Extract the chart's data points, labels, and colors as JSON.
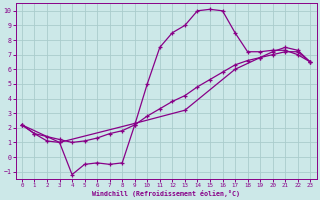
{
  "xlabel": "Windchill (Refroidissement éolien,°C)",
  "bg_color": "#cce8e8",
  "line_color": "#880088",
  "grid_color": "#aacccc",
  "xlim": [
    -0.5,
    23.5
  ],
  "ylim": [
    -1.5,
    10.5
  ],
  "xticks": [
    0,
    1,
    2,
    3,
    4,
    5,
    6,
    7,
    8,
    9,
    10,
    11,
    12,
    13,
    14,
    15,
    16,
    17,
    18,
    19,
    20,
    21,
    22,
    23
  ],
  "yticks": [
    -1,
    0,
    1,
    2,
    3,
    4,
    5,
    6,
    7,
    8,
    9,
    10
  ],
  "curve1_x": [
    0,
    1,
    2,
    3,
    4,
    5,
    6,
    7,
    8,
    9,
    10,
    11,
    12,
    13,
    14,
    15,
    16,
    17,
    18,
    19,
    20,
    21,
    22,
    23
  ],
  "curve1_y": [
    2.2,
    1.6,
    1.1,
    1.0,
    -1.2,
    -0.5,
    -0.4,
    -0.5,
    -0.4,
    2.2,
    5.0,
    7.5,
    8.5,
    9.0,
    10.0,
    10.1,
    10.0,
    8.5,
    7.2,
    7.2,
    7.3,
    7.3,
    7.0,
    6.5
  ],
  "curve2_x": [
    0,
    1,
    2,
    3,
    4,
    5,
    6,
    7,
    8,
    9,
    10,
    11,
    12,
    13,
    14,
    15,
    16,
    17,
    18,
    19,
    20,
    21,
    22,
    23
  ],
  "curve2_y": [
    2.2,
    1.6,
    1.4,
    1.2,
    1.0,
    1.1,
    1.3,
    1.6,
    1.8,
    2.2,
    2.8,
    3.3,
    3.8,
    4.2,
    4.8,
    5.3,
    5.8,
    6.3,
    6.6,
    6.8,
    7.0,
    7.2,
    7.2,
    6.5
  ],
  "curve3_x": [
    0,
    3,
    9,
    13,
    17,
    19,
    20,
    21,
    22,
    23
  ],
  "curve3_y": [
    2.2,
    1.0,
    2.3,
    3.2,
    6.0,
    6.8,
    7.2,
    7.5,
    7.3,
    6.5
  ]
}
